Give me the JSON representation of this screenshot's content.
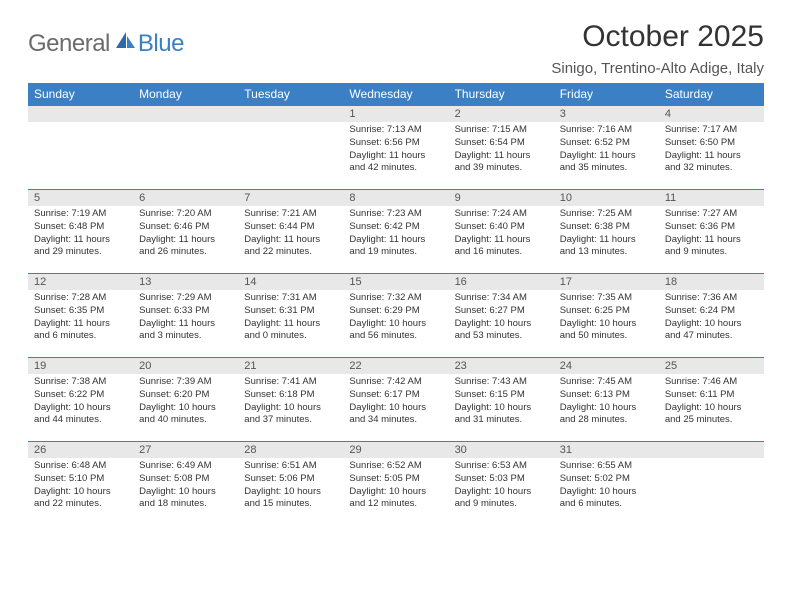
{
  "logo": {
    "general": "General",
    "blue": "Blue"
  },
  "title": "October 2025",
  "location": "Sinigo, Trentino-Alto Adige, Italy",
  "colors": {
    "header_bg": "#3b7fc4",
    "header_text": "#ffffff",
    "daynum_bg": "#e8e8e8",
    "border": "#3b7fc4",
    "logo_gray": "#6b6b6b",
    "logo_blue": "#3b7fc4"
  },
  "day_headers": [
    "Sunday",
    "Monday",
    "Tuesday",
    "Wednesday",
    "Thursday",
    "Friday",
    "Saturday"
  ],
  "weeks": [
    [
      null,
      null,
      null,
      {
        "n": "1",
        "sr": "7:13 AM",
        "ss": "6:56 PM",
        "dl": "11 hours and 42 minutes."
      },
      {
        "n": "2",
        "sr": "7:15 AM",
        "ss": "6:54 PM",
        "dl": "11 hours and 39 minutes."
      },
      {
        "n": "3",
        "sr": "7:16 AM",
        "ss": "6:52 PM",
        "dl": "11 hours and 35 minutes."
      },
      {
        "n": "4",
        "sr": "7:17 AM",
        "ss": "6:50 PM",
        "dl": "11 hours and 32 minutes."
      }
    ],
    [
      {
        "n": "5",
        "sr": "7:19 AM",
        "ss": "6:48 PM",
        "dl": "11 hours and 29 minutes."
      },
      {
        "n": "6",
        "sr": "7:20 AM",
        "ss": "6:46 PM",
        "dl": "11 hours and 26 minutes."
      },
      {
        "n": "7",
        "sr": "7:21 AM",
        "ss": "6:44 PM",
        "dl": "11 hours and 22 minutes."
      },
      {
        "n": "8",
        "sr": "7:23 AM",
        "ss": "6:42 PM",
        "dl": "11 hours and 19 minutes."
      },
      {
        "n": "9",
        "sr": "7:24 AM",
        "ss": "6:40 PM",
        "dl": "11 hours and 16 minutes."
      },
      {
        "n": "10",
        "sr": "7:25 AM",
        "ss": "6:38 PM",
        "dl": "11 hours and 13 minutes."
      },
      {
        "n": "11",
        "sr": "7:27 AM",
        "ss": "6:36 PM",
        "dl": "11 hours and 9 minutes."
      }
    ],
    [
      {
        "n": "12",
        "sr": "7:28 AM",
        "ss": "6:35 PM",
        "dl": "11 hours and 6 minutes."
      },
      {
        "n": "13",
        "sr": "7:29 AM",
        "ss": "6:33 PM",
        "dl": "11 hours and 3 minutes."
      },
      {
        "n": "14",
        "sr": "7:31 AM",
        "ss": "6:31 PM",
        "dl": "11 hours and 0 minutes."
      },
      {
        "n": "15",
        "sr": "7:32 AM",
        "ss": "6:29 PM",
        "dl": "10 hours and 56 minutes."
      },
      {
        "n": "16",
        "sr": "7:34 AM",
        "ss": "6:27 PM",
        "dl": "10 hours and 53 minutes."
      },
      {
        "n": "17",
        "sr": "7:35 AM",
        "ss": "6:25 PM",
        "dl": "10 hours and 50 minutes."
      },
      {
        "n": "18",
        "sr": "7:36 AM",
        "ss": "6:24 PM",
        "dl": "10 hours and 47 minutes."
      }
    ],
    [
      {
        "n": "19",
        "sr": "7:38 AM",
        "ss": "6:22 PM",
        "dl": "10 hours and 44 minutes."
      },
      {
        "n": "20",
        "sr": "7:39 AM",
        "ss": "6:20 PM",
        "dl": "10 hours and 40 minutes."
      },
      {
        "n": "21",
        "sr": "7:41 AM",
        "ss": "6:18 PM",
        "dl": "10 hours and 37 minutes."
      },
      {
        "n": "22",
        "sr": "7:42 AM",
        "ss": "6:17 PM",
        "dl": "10 hours and 34 minutes."
      },
      {
        "n": "23",
        "sr": "7:43 AM",
        "ss": "6:15 PM",
        "dl": "10 hours and 31 minutes."
      },
      {
        "n": "24",
        "sr": "7:45 AM",
        "ss": "6:13 PM",
        "dl": "10 hours and 28 minutes."
      },
      {
        "n": "25",
        "sr": "7:46 AM",
        "ss": "6:11 PM",
        "dl": "10 hours and 25 minutes."
      }
    ],
    [
      {
        "n": "26",
        "sr": "6:48 AM",
        "ss": "5:10 PM",
        "dl": "10 hours and 22 minutes."
      },
      {
        "n": "27",
        "sr": "6:49 AM",
        "ss": "5:08 PM",
        "dl": "10 hours and 18 minutes."
      },
      {
        "n": "28",
        "sr": "6:51 AM",
        "ss": "5:06 PM",
        "dl": "10 hours and 15 minutes."
      },
      {
        "n": "29",
        "sr": "6:52 AM",
        "ss": "5:05 PM",
        "dl": "10 hours and 12 minutes."
      },
      {
        "n": "30",
        "sr": "6:53 AM",
        "ss": "5:03 PM",
        "dl": "10 hours and 9 minutes."
      },
      {
        "n": "31",
        "sr": "6:55 AM",
        "ss": "5:02 PM",
        "dl": "10 hours and 6 minutes."
      },
      null
    ]
  ],
  "labels": {
    "sunrise": "Sunrise:",
    "sunset": "Sunset:",
    "daylight": "Daylight:"
  }
}
